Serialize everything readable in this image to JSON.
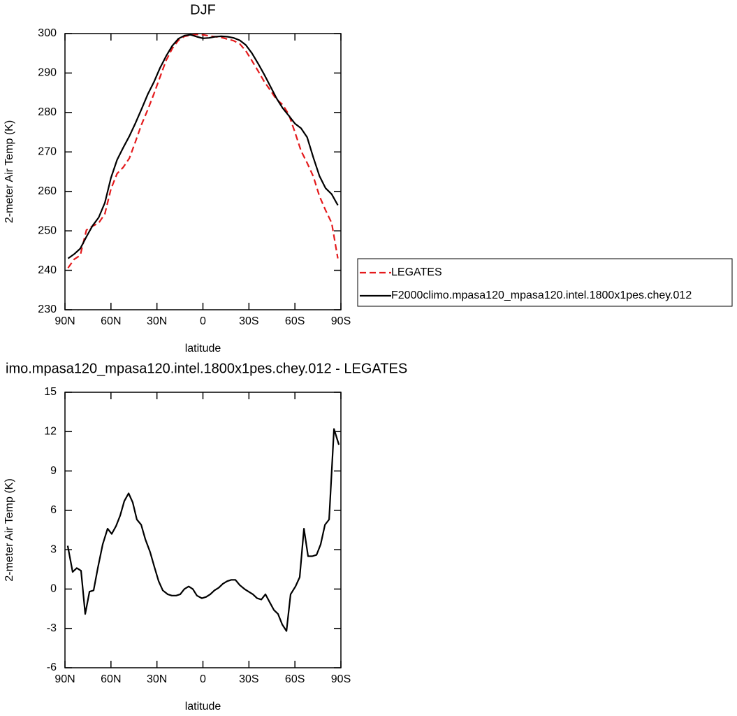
{
  "chart_data": [
    {
      "type": "line",
      "title": "DJF",
      "xlabel": "latitude",
      "ylabel": "2-meter Air Temp (K)",
      "x": [
        88,
        84,
        80,
        76,
        72,
        68,
        64,
        60,
        56,
        52,
        48,
        44,
        40,
        36,
        32,
        28,
        24,
        20,
        16,
        12,
        8,
        4,
        0,
        -4,
        -8,
        -12,
        -16,
        -20,
        -24,
        -28,
        -32,
        -36,
        -40,
        -44,
        -48,
        -52,
        -56,
        -60,
        -64,
        -68,
        -72,
        -76,
        -80,
        -84,
        -88
      ],
      "xlim": [
        90,
        -90
      ],
      "xticks": [
        {
          "value": 90,
          "label": "90N"
        },
        {
          "value": 60,
          "label": "60N"
        },
        {
          "value": 30,
          "label": "30N"
        },
        0,
        {
          "value": -30,
          "label": "30S"
        },
        {
          "value": -60,
          "label": "60S"
        },
        {
          "value": -90,
          "label": "90S"
        }
      ],
      "ylim": [
        230,
        300
      ],
      "yticks": [
        230,
        240,
        250,
        260,
        270,
        280,
        290,
        300
      ],
      "legend": "right",
      "series": [
        {
          "name": "LEGATES",
          "color": "#e41a1c",
          "dashed": true,
          "values": [
            240.6,
            242.8,
            243.8,
            250.2,
            251.2,
            252.0,
            254.3,
            260.6,
            264.5,
            266.1,
            268.4,
            272.6,
            277.0,
            280.7,
            284.7,
            289.0,
            293.2,
            296.2,
            298.3,
            299.3,
            299.6,
            299.8,
            299.7,
            299.4,
            299.2,
            299.0,
            298.6,
            298.2,
            297.4,
            295.6,
            293.1,
            290.5,
            287.8,
            285.6,
            283.3,
            282.0,
            279.5,
            275.0,
            270.3,
            267.2,
            263.8,
            258.8,
            255.2,
            252.0,
            243.0
          ]
        },
        {
          "name": "F2000climo.mpasa120_mpasa120.intel.1800x1pes.chey.012",
          "color": "#000000",
          "dashed": false,
          "values": [
            243.0,
            244.1,
            245.5,
            248.5,
            251.3,
            253.4,
            257.1,
            263.4,
            268.0,
            271.1,
            274.0,
            277.3,
            280.9,
            284.6,
            287.7,
            291.3,
            294.3,
            296.9,
            298.7,
            299.5,
            299.7,
            299.2,
            298.8,
            298.9,
            299.2,
            299.3,
            299.2,
            298.9,
            298.3,
            297.1,
            295.0,
            292.4,
            289.6,
            286.6,
            283.6,
            281.1,
            279.2,
            277.2,
            276.0,
            273.7,
            268.6,
            263.9,
            260.8,
            259.3,
            256.5
          ]
        }
      ]
    },
    {
      "type": "line",
      "title": "imo.mpasa120_mpasa120.intel.1800x1pes.chey.012 - LEGATES",
      "xlabel": "latitude",
      "ylabel": "2-meter Air Temp (K)",
      "x": [
        88.2,
        85,
        82.3,
        79.5,
        76.8,
        74,
        71.3,
        68.6,
        65.4,
        62.2,
        59.5,
        56.7,
        54,
        51.3,
        48.5,
        45.8,
        43.1,
        40.3,
        37.6,
        34.4,
        31.7,
        28.9,
        26.2,
        23,
        20.3,
        17.5,
        14.8,
        12.1,
        9.3,
        6.6,
        3.9,
        0.7,
        -2.1,
        -4.8,
        -7.5,
        -10.3,
        -13,
        -15.8,
        -18.5,
        -21.2,
        -24,
        -27.1,
        -29.8,
        -32.6,
        -35.3,
        -38.1,
        -40.8,
        -43.5,
        -46.3,
        -49,
        -51.7,
        -54.5,
        -57.2,
        -60.4,
        -63.1,
        -65.9,
        -68.6,
        -71.3,
        -74.1,
        -76.8,
        -79.6,
        -82.3,
        -85.5,
        -88.7
      ],
      "xlim": [
        90,
        -90
      ],
      "xticks": [
        {
          "value": 90,
          "label": "90N"
        },
        {
          "value": 60,
          "label": "60N"
        },
        {
          "value": 30,
          "label": "30N"
        },
        0,
        {
          "value": -30,
          "label": "30S"
        },
        {
          "value": -60,
          "label": "60S"
        },
        {
          "value": -90,
          "label": "90S"
        }
      ],
      "ylim": [
        -6,
        15
      ],
      "yticks": [
        -6,
        -3,
        0,
        3,
        6,
        9,
        12,
        15
      ],
      "color": "#000000",
      "values": [
        3.3,
        1.3,
        1.6,
        1.4,
        -1.9,
        -0.2,
        -0.1,
        1.6,
        3.4,
        4.6,
        4.2,
        4.8,
        5.6,
        6.7,
        7.3,
        6.6,
        5.3,
        4.9,
        3.8,
        2.8,
        1.7,
        0.6,
        -0.1,
        -0.4,
        -0.5,
        -0.5,
        -0.4,
        0.0,
        0.2,
        0.0,
        -0.5,
        -0.7,
        -0.6,
        -0.4,
        -0.1,
        0.1,
        0.4,
        0.6,
        0.7,
        0.7,
        0.3,
        0.0,
        -0.2,
        -0.4,
        -0.7,
        -0.8,
        -0.4,
        -1.0,
        -1.6,
        -1.9,
        -2.7,
        -3.2,
        -0.4,
        0.2,
        0.9,
        4.6,
        2.5,
        2.5,
        2.6,
        3.4,
        4.9,
        5.3,
        12.2,
        11.0
      ]
    }
  ]
}
